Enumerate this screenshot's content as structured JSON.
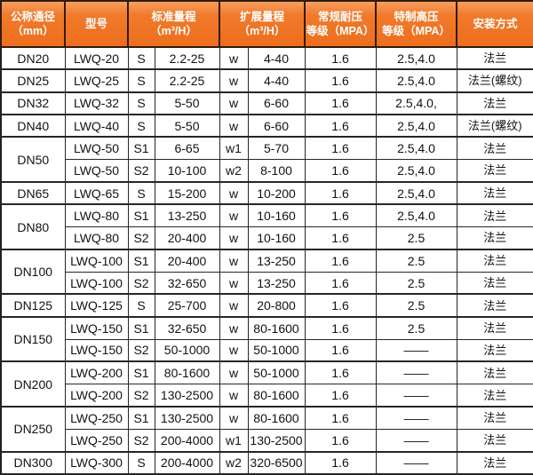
{
  "colors": {
    "header_background": "#ed6e1d",
    "header_background_light": "#f89e60",
    "header_text": "#ffffff",
    "border": "#262626",
    "body_text": "#121212"
  },
  "table": {
    "header": {
      "col_diameter": "公称通径\n（mm）",
      "col_model": "型号",
      "col_standard_range": "标准量程\n（m³/H）",
      "col_extended_range": "扩展量程\n（m³/H）",
      "col_normal_pressure": "常规耐压\n等级（MPA）",
      "col_high_pressure": "特制高压\n等级（MPA）",
      "col_installation": "安装方式"
    },
    "rows": [
      {
        "diameter": "DN20",
        "diameter_rowspan": 1,
        "model": "LWQ-20",
        "std_code": "S",
        "std_range": "2.2-25",
        "ext_code": "w",
        "ext_range": "4-40",
        "normal_pressure": "1.6",
        "high_pressure": "2.5,4.0",
        "installation": "法兰"
      },
      {
        "diameter": "DN25",
        "diameter_rowspan": 1,
        "model": "LWQ-25",
        "std_code": "S",
        "std_range": "2.2-25",
        "ext_code": "w",
        "ext_range": "4-40",
        "normal_pressure": "1.6",
        "high_pressure": "2.5,4.0",
        "installation": "法兰(螺纹)"
      },
      {
        "diameter": "DN32",
        "diameter_rowspan": 1,
        "model": "LWQ-32",
        "std_code": "S",
        "std_range": "5-50",
        "ext_code": "w",
        "ext_range": "6-60",
        "normal_pressure": "1.6",
        "high_pressure": "2.5,4.0,",
        "installation": "法兰"
      },
      {
        "diameter": "DN40",
        "diameter_rowspan": 1,
        "model": "LWQ-40",
        "std_code": "S",
        "std_range": "5-50",
        "ext_code": "w",
        "ext_range": "6-60",
        "normal_pressure": "1.6",
        "high_pressure": "2.5,4.0",
        "installation": "法兰(螺纹)"
      },
      {
        "diameter": "DN50",
        "diameter_rowspan": 2,
        "model": "LWQ-50",
        "std_code": "S1",
        "std_range": "6-65",
        "ext_code": "w1",
        "ext_range": "5-70",
        "normal_pressure": "1.6",
        "high_pressure": "2.5,4.0",
        "installation": "法兰"
      },
      {
        "diameter": null,
        "diameter_rowspan": 0,
        "model": "LWQ-50",
        "std_code": "S2",
        "std_range": "10-100",
        "ext_code": "w2",
        "ext_range": "8-100",
        "normal_pressure": "1.6",
        "high_pressure": "2.5,4.0",
        "installation": "法兰"
      },
      {
        "diameter": "DN65",
        "diameter_rowspan": 1,
        "model": "LWQ-65",
        "std_code": "S",
        "std_range": "15-200",
        "ext_code": "w",
        "ext_range": "10-200",
        "normal_pressure": "1.6",
        "high_pressure": "2.5,4.0",
        "installation": "法兰"
      },
      {
        "diameter": "DN80",
        "diameter_rowspan": 2,
        "model": "LWQ-80",
        "std_code": "S1",
        "std_range": "13-250",
        "ext_code": "w",
        "ext_range": "10-160",
        "normal_pressure": "1.6",
        "high_pressure": "2.5,4.0",
        "installation": "法兰"
      },
      {
        "diameter": null,
        "diameter_rowspan": 0,
        "model": "LWQ-80",
        "std_code": "S2",
        "std_range": "20-400",
        "ext_code": "w",
        "ext_range": "10-160",
        "normal_pressure": "1.6",
        "high_pressure": "2.5",
        "installation": "法兰"
      },
      {
        "diameter": "DN100",
        "diameter_rowspan": 2,
        "model": "LWQ-100",
        "std_code": "S1",
        "std_range": "20-400",
        "ext_code": "w",
        "ext_range": "13-250",
        "normal_pressure": "1.6",
        "high_pressure": "2.5",
        "installation": "法兰"
      },
      {
        "diameter": null,
        "diameter_rowspan": 0,
        "model": "LWQ-100",
        "std_code": "S2",
        "std_range": "32-650",
        "ext_code": "w",
        "ext_range": "13-250",
        "normal_pressure": "1.6",
        "high_pressure": "2.5",
        "installation": "法兰"
      },
      {
        "diameter": "DN125",
        "diameter_rowspan": 1,
        "model": "LWQ-125",
        "std_code": "S",
        "std_range": "25-700",
        "ext_code": "w",
        "ext_range": "20-800",
        "normal_pressure": "1.6",
        "high_pressure": "2.5",
        "installation": "法兰"
      },
      {
        "diameter": "DN150",
        "diameter_rowspan": 2,
        "model": "LWQ-150",
        "std_code": "S1",
        "std_range": "32-650",
        "ext_code": "w",
        "ext_range": "80-1600",
        "normal_pressure": "1.6",
        "high_pressure": "2.5",
        "installation": "法兰"
      },
      {
        "diameter": null,
        "diameter_rowspan": 0,
        "model": "LWQ-150",
        "std_code": "S2",
        "std_range": "50-1000",
        "ext_code": "w",
        "ext_range": "50-1000",
        "normal_pressure": "1.6",
        "high_pressure": "——",
        "installation": "法兰"
      },
      {
        "diameter": "DN200",
        "diameter_rowspan": 2,
        "model": "LWQ-200",
        "std_code": "S1",
        "std_range": "80-1600",
        "ext_code": "w",
        "ext_range": "50-1000",
        "normal_pressure": "1.6",
        "high_pressure": "——",
        "installation": "法兰"
      },
      {
        "diameter": null,
        "diameter_rowspan": 0,
        "model": "LWQ-200",
        "std_code": "S2",
        "std_range": "130-2500",
        "ext_code": "w",
        "ext_range": "80-1600",
        "normal_pressure": "1.6",
        "high_pressure": "——",
        "installation": "法兰"
      },
      {
        "diameter": "DN250",
        "diameter_rowspan": 2,
        "model": "LWQ-250",
        "std_code": "S1",
        "std_range": "130-2500",
        "ext_code": "w",
        "ext_range": "80-1600",
        "normal_pressure": "1.6",
        "high_pressure": "——",
        "installation": "法兰"
      },
      {
        "diameter": null,
        "diameter_rowspan": 0,
        "model": "LWQ-250",
        "std_code": "S2",
        "std_range": "200-4000",
        "ext_code": "w1",
        "ext_range": "130-2500",
        "normal_pressure": "1.6",
        "high_pressure": "——",
        "installation": "法兰"
      },
      {
        "diameter": "DN300",
        "diameter_rowspan": 1,
        "model": "LWQ-300",
        "std_code": "S",
        "std_range": "200-4000",
        "ext_code": "w2",
        "ext_range": "320-6500",
        "normal_pressure": "1.6",
        "high_pressure": "——",
        "installation": "法兰"
      }
    ]
  }
}
